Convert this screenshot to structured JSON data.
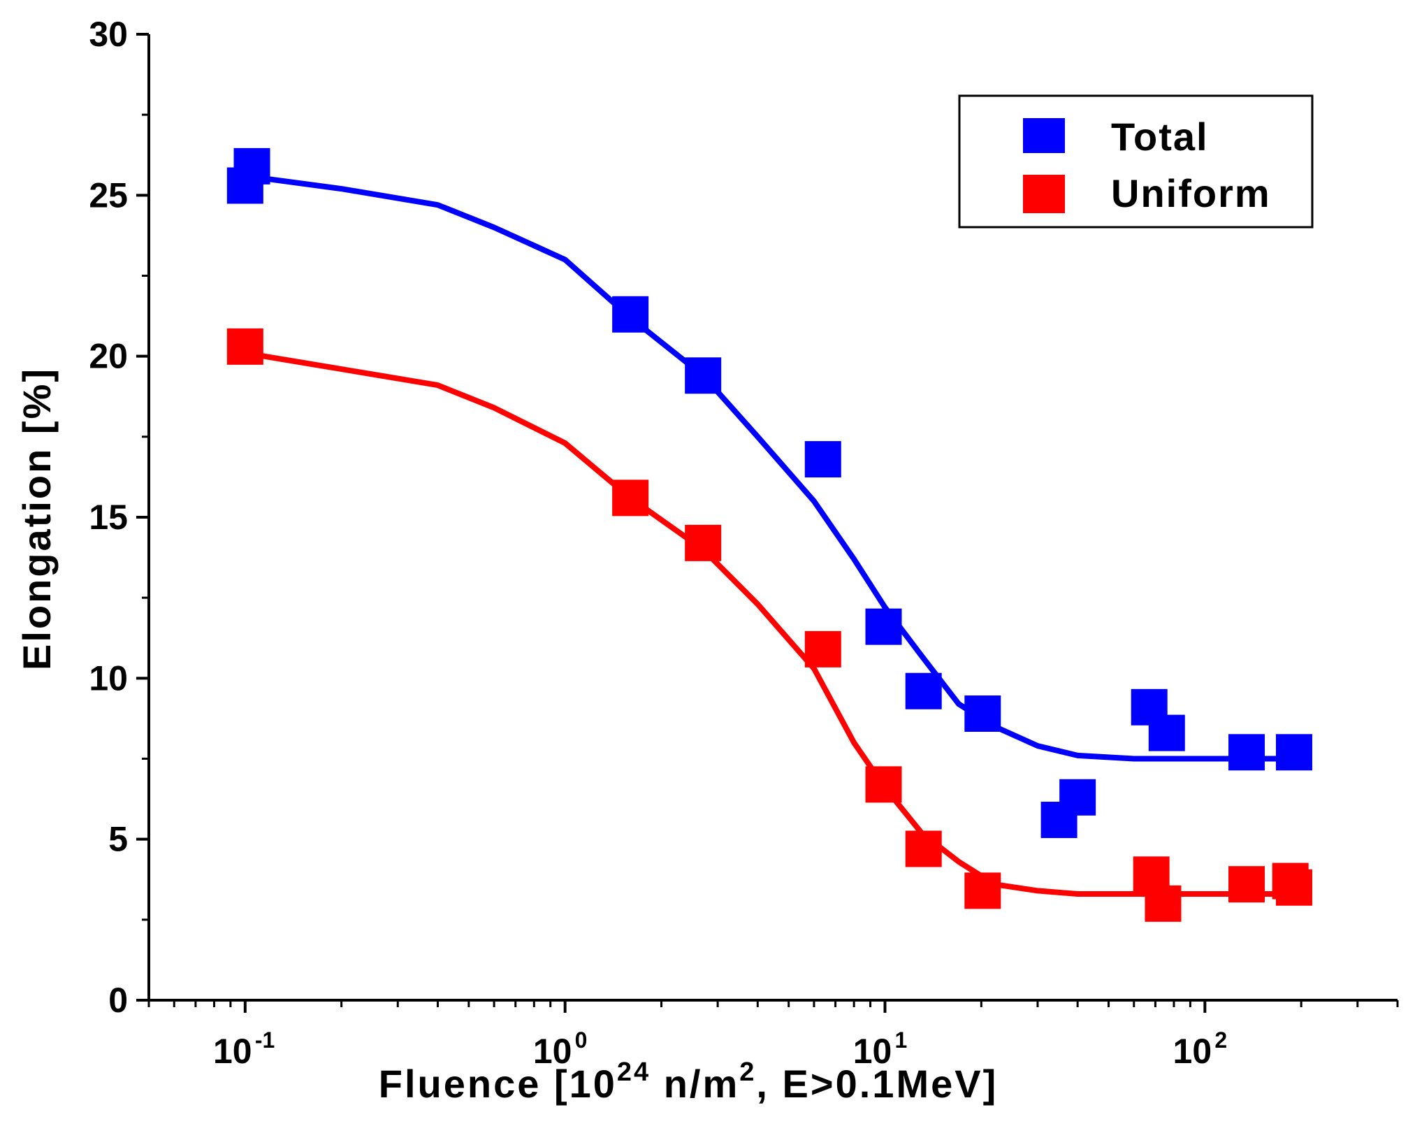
{
  "chart_data": {
    "type": "scatter",
    "title": "",
    "xscale": "log",
    "xlim": [
      0.05,
      400
    ],
    "ylim": [
      0,
      30
    ],
    "xlabel": {
      "prefix": "Fluence [10",
      "sup1": "24",
      "mid": " n/m",
      "sup2": "2",
      "suffix": ", E>0.1MeV]"
    },
    "ylabel": "Elongation [%]",
    "x_ticks": [
      {
        "value": 0.1,
        "base": "10",
        "exp": "-1"
      },
      {
        "value": 1,
        "base": "10",
        "exp": "0"
      },
      {
        "value": 10,
        "base": "10",
        "exp": "1"
      },
      {
        "value": 100,
        "base": "10",
        "exp": "2"
      }
    ],
    "y_ticks": [
      {
        "value": 0,
        "label": "0"
      },
      {
        "value": 5,
        "label": "5"
      },
      {
        "value": 10,
        "label": "10"
      },
      {
        "value": 15,
        "label": "15"
      },
      {
        "value": 20,
        "label": "20"
      },
      {
        "value": 25,
        "label": "25"
      },
      {
        "value": 30,
        "label": "30"
      }
    ],
    "legend_position": "top-right",
    "series": [
      {
        "name": "Total",
        "color": "#0000ff",
        "marker": "square",
        "points": [
          {
            "x": 0.1,
            "y": 25.3
          },
          {
            "x": 0.105,
            "y": 25.9
          },
          {
            "x": 1.6,
            "y": 21.3
          },
          {
            "x": 2.7,
            "y": 19.4
          },
          {
            "x": 6.4,
            "y": 16.8
          },
          {
            "x": 9.9,
            "y": 11.6
          },
          {
            "x": 13.2,
            "y": 9.6
          },
          {
            "x": 20.2,
            "y": 8.9
          },
          {
            "x": 35,
            "y": 5.6
          },
          {
            "x": 40,
            "y": 6.3
          },
          {
            "x": 67,
            "y": 9.1
          },
          {
            "x": 76,
            "y": 8.3
          },
          {
            "x": 135,
            "y": 7.7
          },
          {
            "x": 190,
            "y": 7.7
          }
        ],
        "fit": [
          {
            "x": 0.1,
            "y": 25.6
          },
          {
            "x": 0.2,
            "y": 25.2
          },
          {
            "x": 0.4,
            "y": 24.7
          },
          {
            "x": 0.6,
            "y": 24.0
          },
          {
            "x": 1.0,
            "y": 23.0
          },
          {
            "x": 1.6,
            "y": 21.2
          },
          {
            "x": 2.7,
            "y": 19.4
          },
          {
            "x": 4.0,
            "y": 17.5
          },
          {
            "x": 6.0,
            "y": 15.5
          },
          {
            "x": 8.0,
            "y": 13.7
          },
          {
            "x": 10.0,
            "y": 12.2
          },
          {
            "x": 13.0,
            "y": 10.7
          },
          {
            "x": 17.0,
            "y": 9.2
          },
          {
            "x": 22.0,
            "y": 8.5
          },
          {
            "x": 30.0,
            "y": 7.9
          },
          {
            "x": 40.0,
            "y": 7.6
          },
          {
            "x": 60.0,
            "y": 7.5
          },
          {
            "x": 200.0,
            "y": 7.5
          }
        ]
      },
      {
        "name": "Uniform",
        "color": "#ff0000",
        "marker": "square",
        "points": [
          {
            "x": 0.1,
            "y": 20.3
          },
          {
            "x": 1.6,
            "y": 15.6
          },
          {
            "x": 2.7,
            "y": 14.2
          },
          {
            "x": 6.4,
            "y": 10.9
          },
          {
            "x": 9.9,
            "y": 6.7
          },
          {
            "x": 13.2,
            "y": 4.7
          },
          {
            "x": 20.2,
            "y": 3.4
          },
          {
            "x": 68,
            "y": 3.9
          },
          {
            "x": 74,
            "y": 3.0
          },
          {
            "x": 135,
            "y": 3.6
          },
          {
            "x": 185,
            "y": 3.7
          },
          {
            "x": 190,
            "y": 3.5
          }
        ],
        "fit": [
          {
            "x": 0.1,
            "y": 20.1
          },
          {
            "x": 0.2,
            "y": 19.6
          },
          {
            "x": 0.4,
            "y": 19.1
          },
          {
            "x": 0.6,
            "y": 18.4
          },
          {
            "x": 1.0,
            "y": 17.3
          },
          {
            "x": 1.6,
            "y": 15.6
          },
          {
            "x": 2.7,
            "y": 14.0
          },
          {
            "x": 4.0,
            "y": 12.3
          },
          {
            "x": 6.0,
            "y": 10.3
          },
          {
            "x": 8.0,
            "y": 8.0
          },
          {
            "x": 10.0,
            "y": 6.6
          },
          {
            "x": 13.0,
            "y": 5.2
          },
          {
            "x": 17.0,
            "y": 4.3
          },
          {
            "x": 22.0,
            "y": 3.6
          },
          {
            "x": 30.0,
            "y": 3.4
          },
          {
            "x": 40.0,
            "y": 3.3
          },
          {
            "x": 60.0,
            "y": 3.3
          },
          {
            "x": 200.0,
            "y": 3.3
          }
        ]
      }
    ]
  }
}
